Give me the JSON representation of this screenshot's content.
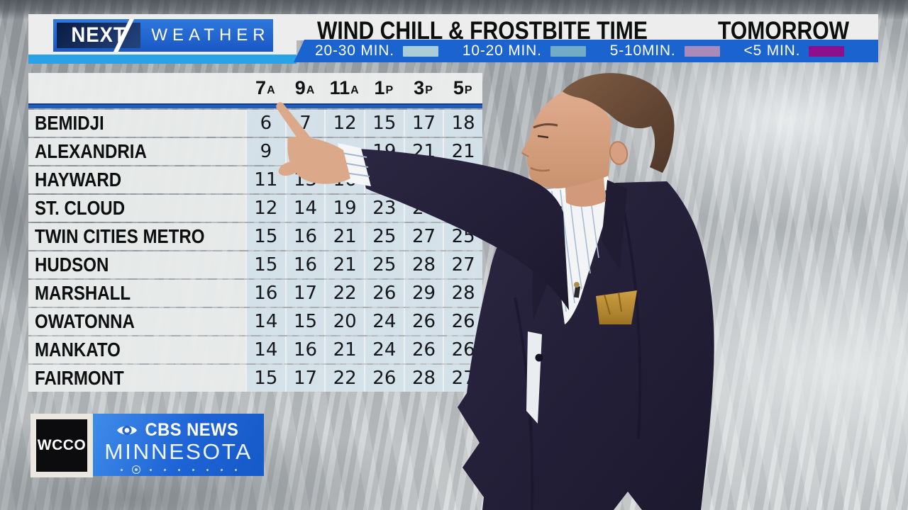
{
  "header": {
    "brand": {
      "next": "NEXT",
      "weather": "WEATHER"
    },
    "title": "WIND CHILL & FROSTBITE TIME",
    "timeframe": "TOMORROW",
    "legend": [
      {
        "label": "20-30 MIN.",
        "color": "#a9cdd9"
      },
      {
        "label": "10-20 MIN.",
        "color": "#72abc6"
      },
      {
        "label": "5-10MIN.",
        "color": "#a98bbb"
      },
      {
        "label": "<5 MIN.",
        "color": "#8e0f8e"
      }
    ]
  },
  "colors": {
    "legend_bar": "#1b64cf",
    "accent_strip": "#2aa2e8",
    "divider_blue": "#1e5cb8",
    "value_cell": "#d5e2ea",
    "suit_navy": "#252138"
  },
  "table": {
    "columns": [
      {
        "hour": "7",
        "ap": "A"
      },
      {
        "hour": "9",
        "ap": "A"
      },
      {
        "hour": "11",
        "ap": "A"
      },
      {
        "hour": "1",
        "ap": "P"
      },
      {
        "hour": "3",
        "ap": "P"
      },
      {
        "hour": "5",
        "ap": "P"
      }
    ]
  },
  "chart_data": {
    "type": "table",
    "title": "WIND CHILL & FROSTBITE TIME",
    "subtitle": "TOMORROW",
    "columns": [
      "7A",
      "9A",
      "11A",
      "1P",
      "3P",
      "5P"
    ],
    "rows": [
      {
        "location": "BEMIDJI",
        "wind_chill": [
          6,
          7,
          12,
          15,
          17,
          18
        ]
      },
      {
        "location": "ALEXANDRIA",
        "wind_chill": [
          9,
          null,
          null,
          19,
          21,
          21
        ]
      },
      {
        "location": "HAYWARD",
        "wind_chill": [
          11,
          13,
          16,
          null,
          null,
          null
        ]
      },
      {
        "location": "ST. CLOUD",
        "wind_chill": [
          12,
          14,
          19,
          23,
          24,
          null
        ]
      },
      {
        "location": "TWIN CITIES METRO",
        "wind_chill": [
          15,
          16,
          21,
          25,
          27,
          25
        ]
      },
      {
        "location": "HUDSON",
        "wind_chill": [
          15,
          16,
          21,
          25,
          28,
          27
        ]
      },
      {
        "location": "MARSHALL",
        "wind_chill": [
          16,
          17,
          22,
          26,
          29,
          28
        ]
      },
      {
        "location": "OWATONNA",
        "wind_chill": [
          14,
          15,
          20,
          24,
          26,
          26
        ]
      },
      {
        "location": "MANKATO",
        "wind_chill": [
          14,
          16,
          21,
          24,
          26,
          26
        ]
      },
      {
        "location": "FAIRMONT",
        "wind_chill": [
          15,
          17,
          22,
          26,
          28,
          27
        ]
      }
    ],
    "legend": [
      {
        "label": "20-30 MIN.",
        "color": "#a9cdd9"
      },
      {
        "label": "10-20 MIN.",
        "color": "#72abc6"
      },
      {
        "label": "5-10MIN.",
        "color": "#a98bbb"
      },
      {
        "label": "<5 MIN.",
        "color": "#8e0f8e"
      }
    ]
  },
  "branding": {
    "station": "WCCO",
    "network": "CBS NEWS",
    "region": "MINNESOTA",
    "carousel_dots": {
      "count": 9,
      "active_index": 1
    }
  }
}
